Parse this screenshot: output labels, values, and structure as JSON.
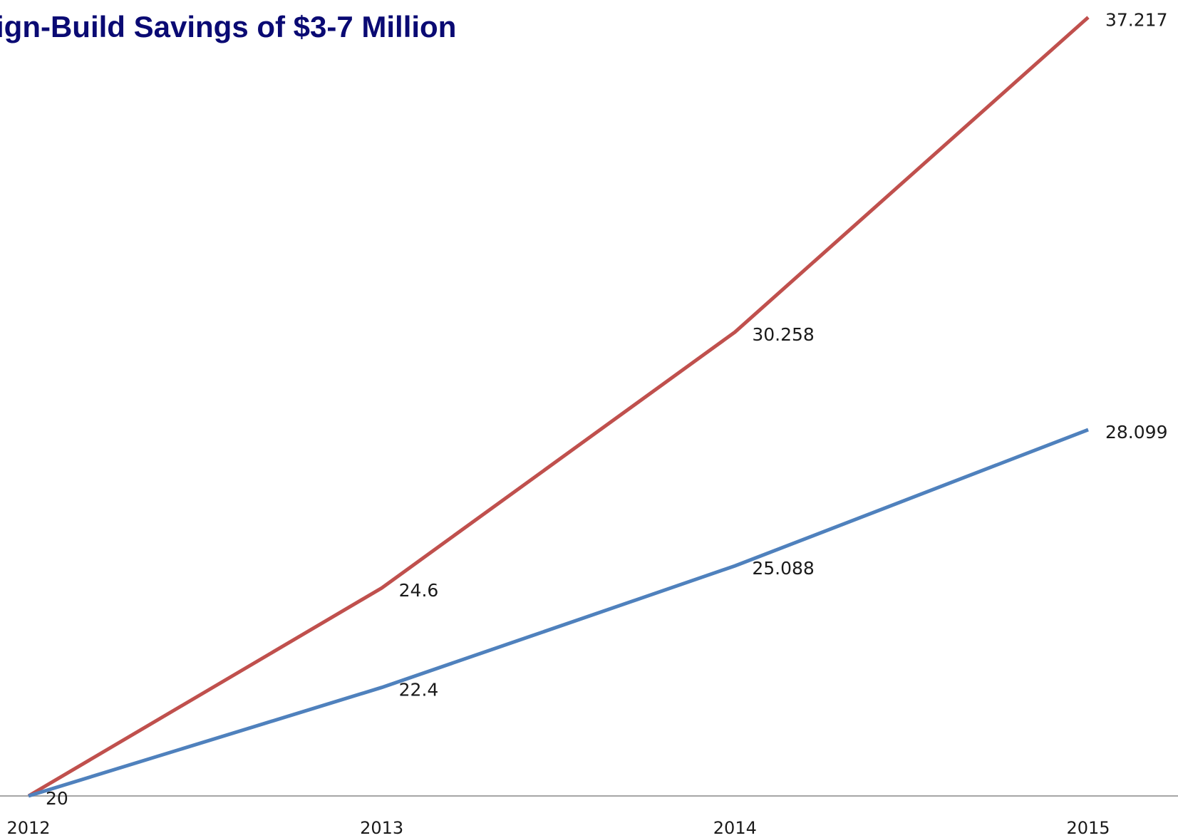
{
  "chart_data": {
    "type": "line",
    "title": "ign-Build Savings of $3-7 Million",
    "categories": [
      "2012",
      "2013",
      "2014",
      "2015"
    ],
    "xlabel": "",
    "ylabel": "",
    "ylim": [
      20,
      37.6
    ],
    "grid": false,
    "legend": "none",
    "series": [
      {
        "color": "#c0504d",
        "values": [
          20,
          24.6,
          30.258,
          37.217
        ],
        "labels": [
          "",
          "24.6",
          "30.258",
          "37.217"
        ]
      },
      {
        "color": "#4f81bd",
        "values": [
          20,
          22.4,
          25.088,
          28.099
        ],
        "labels": [
          "20",
          "22.4",
          "25.088",
          "28.099"
        ]
      }
    ],
    "axis_color": "#a6a6a6"
  }
}
